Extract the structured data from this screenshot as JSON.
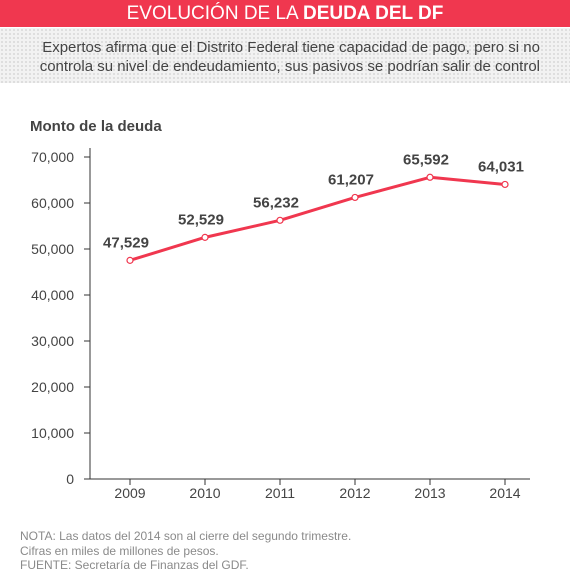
{
  "header": {
    "title_light": "EVOLUCIÓN DE LA ",
    "title_bold": "DEUDA DEL DF",
    "subtitle": "Expertos afirma que el Distrito Federal tiene capacidad de pago, pero si no controla su nivel de endeudamiento, sus pasivos se podrían salir de control"
  },
  "colors": {
    "accent": "#f0374f",
    "axis": "#333333",
    "text": "#444444"
  },
  "chart_data": {
    "type": "line",
    "title": "",
    "ylabel": "Monto de la deuda",
    "xlabel": "",
    "x": [
      "2009",
      "2010",
      "2011",
      "2012",
      "2013",
      "2014"
    ],
    "series": [
      {
        "values": [
          47529,
          52529,
          56232,
          61207,
          65592,
          64031
        ]
      }
    ],
    "data_labels": [
      "47,529",
      "52,529",
      "56,232",
      "61,207",
      "65,592",
      "64,031"
    ],
    "yticks": [
      0,
      10000,
      20000,
      30000,
      40000,
      50000,
      60000,
      70000
    ],
    "ytick_labels": [
      "0",
      "10,000",
      "20,000",
      "30,000",
      "40,000",
      "50,000",
      "60,000",
      "70,000"
    ],
    "ylim": [
      0,
      70000
    ],
    "grid": false,
    "legend": "none"
  },
  "notes": [
    "NOTA: Las datos del 2014 son al cierre del segundo trimestre.",
    "Cifras en miles de millones de pesos.",
    "FUENTE: Secretaría de Finanzas del GDF."
  ]
}
